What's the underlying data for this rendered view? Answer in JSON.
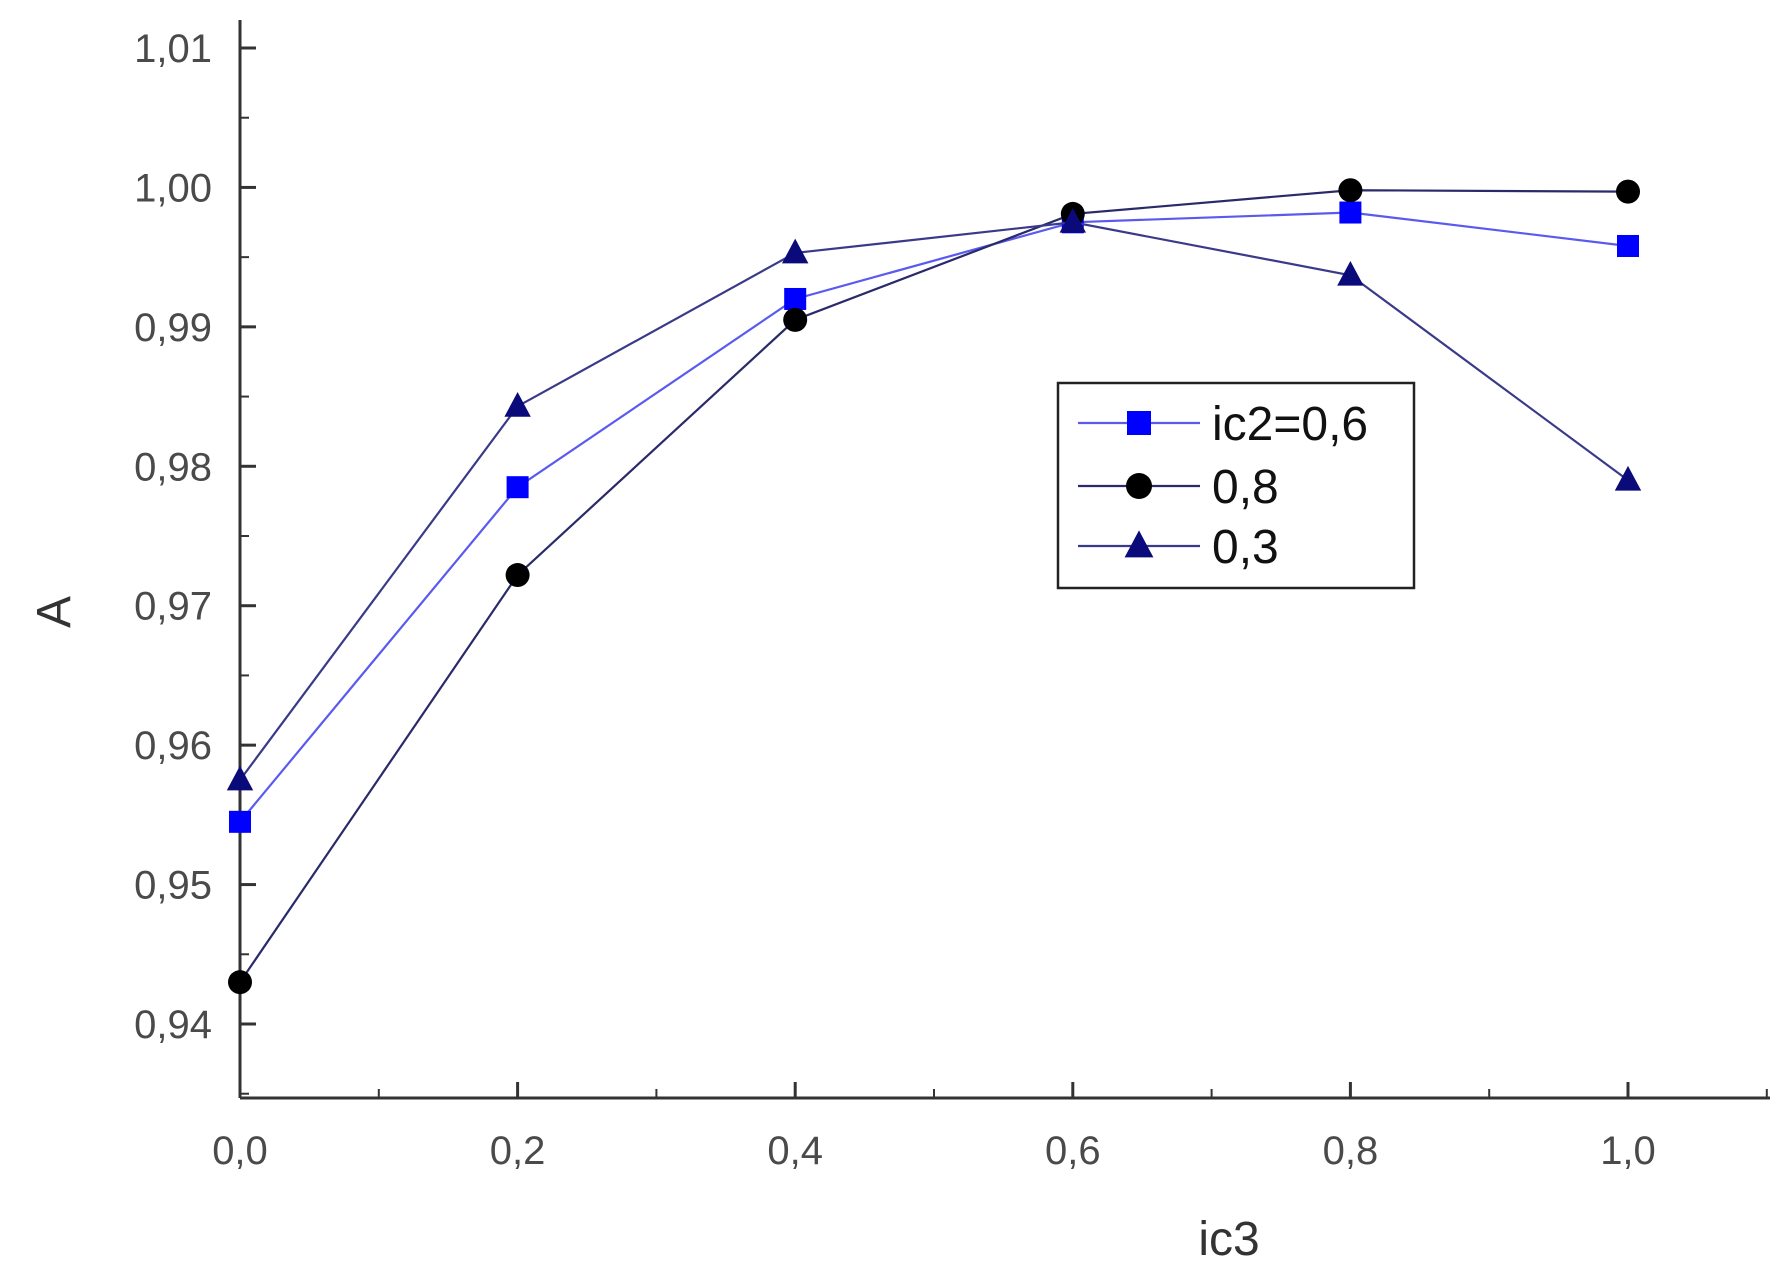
{
  "chart_data": {
    "type": "line",
    "xlabel": "ic3",
    "ylabel": "A",
    "xlim": [
      0.0,
      1.1
    ],
    "ylim": [
      0.935,
      1.01
    ],
    "x": [
      0.0,
      0.2,
      0.4,
      0.6,
      0.8,
      1.0
    ],
    "x_ticks": [
      0.0,
      0.2,
      0.4,
      0.6,
      0.8,
      1.0
    ],
    "x_tick_labels": [
      "0,0",
      "0,2",
      "0,4",
      "0,6",
      "0,8",
      "1,0"
    ],
    "y_ticks": [
      0.94,
      0.95,
      0.96,
      0.97,
      0.98,
      0.99,
      1.0,
      1.01
    ],
    "y_tick_labels": [
      "0,94",
      "0,95",
      "0,96",
      "0,97",
      "0,98",
      "0,99",
      "1,00",
      "1,01"
    ],
    "grid": false,
    "legend_position": "center-right",
    "series": [
      {
        "name": "ic2=0,6",
        "marker": "square",
        "color": "#0000ff",
        "line_color": "#5a5af0",
        "values": [
          0.9545,
          0.9785,
          0.992,
          0.9975,
          0.9982,
          0.9958
        ]
      },
      {
        "name": "0,8",
        "marker": "circle",
        "color": "#000000",
        "line_color": "#2a2a6a",
        "values": [
          0.943,
          0.9722,
          0.9905,
          0.9981,
          0.9998,
          0.9997
        ]
      },
      {
        "name": "0,3",
        "marker": "triangle",
        "color": "#0a0a7a",
        "line_color": "#3a3a8a",
        "values": [
          0.9575,
          0.9843,
          0.9953,
          0.9975,
          0.9937,
          0.979
        ]
      }
    ]
  }
}
